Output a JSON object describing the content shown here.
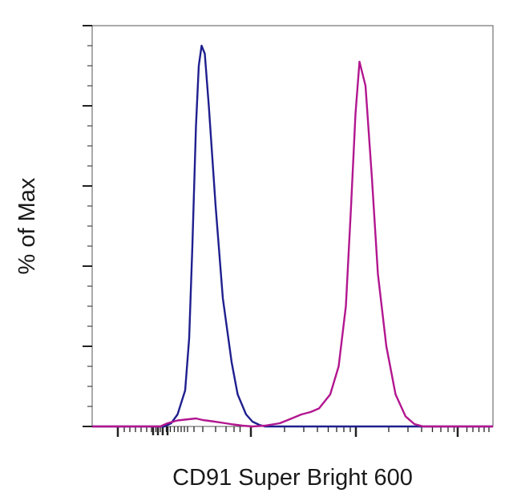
{
  "chart_data": {
    "type": "line",
    "title": "",
    "xlabel": "CD91 Super Bright 600",
    "ylabel": "% of Max",
    "xscale": "log",
    "xlim": [
      0,
      100
    ],
    "ylim": [
      0,
      100
    ],
    "grid": false,
    "legend": "none",
    "series": [
      {
        "color": "#1f1f8f",
        "x": [
          0,
          18,
          19.7,
          21.3,
          23.2,
          24.2,
          25.0,
          25.9,
          26.6,
          27.3,
          28.1,
          29.1,
          30.8,
          32.6,
          34.8,
          36.3,
          38.4,
          40.0,
          41.7,
          43.1,
          100
        ],
        "y": [
          0,
          0,
          0.8,
          3.0,
          9.0,
          22.0,
          45.0,
          75.0,
          90.0,
          95.0,
          93.0,
          80.0,
          55.0,
          32.0,
          16.0,
          8.0,
          3.0,
          1.2,
          0.4,
          0,
          0
        ]
      },
      {
        "color": "#b2168f",
        "x": [
          0,
          17,
          18.8,
          21.3,
          23.1,
          25.9,
          27.6,
          29.9,
          32.6,
          35.2,
          37.5,
          40.0,
          43.1,
          46.8,
          49.3,
          52.2,
          54.5,
          56.6,
          59.4,
          61.5,
          63.3,
          64.6,
          65.7,
          66.7,
          68.2,
          69.8,
          71.3,
          73.4,
          75.7,
          78.2,
          80.4,
          82.6,
          100
        ],
        "y": [
          0,
          0,
          0.8,
          1.5,
          1.7,
          2.0,
          1.6,
          1.3,
          0.9,
          0.5,
          0.2,
          0,
          0.2,
          0.8,
          1.8,
          3.0,
          3.6,
          4.5,
          8.0,
          15.0,
          30.0,
          55.0,
          78.0,
          91.0,
          85.0,
          62.0,
          38.0,
          20.0,
          8.0,
          2.5,
          0.6,
          0,
          0
        ]
      }
    ]
  }
}
